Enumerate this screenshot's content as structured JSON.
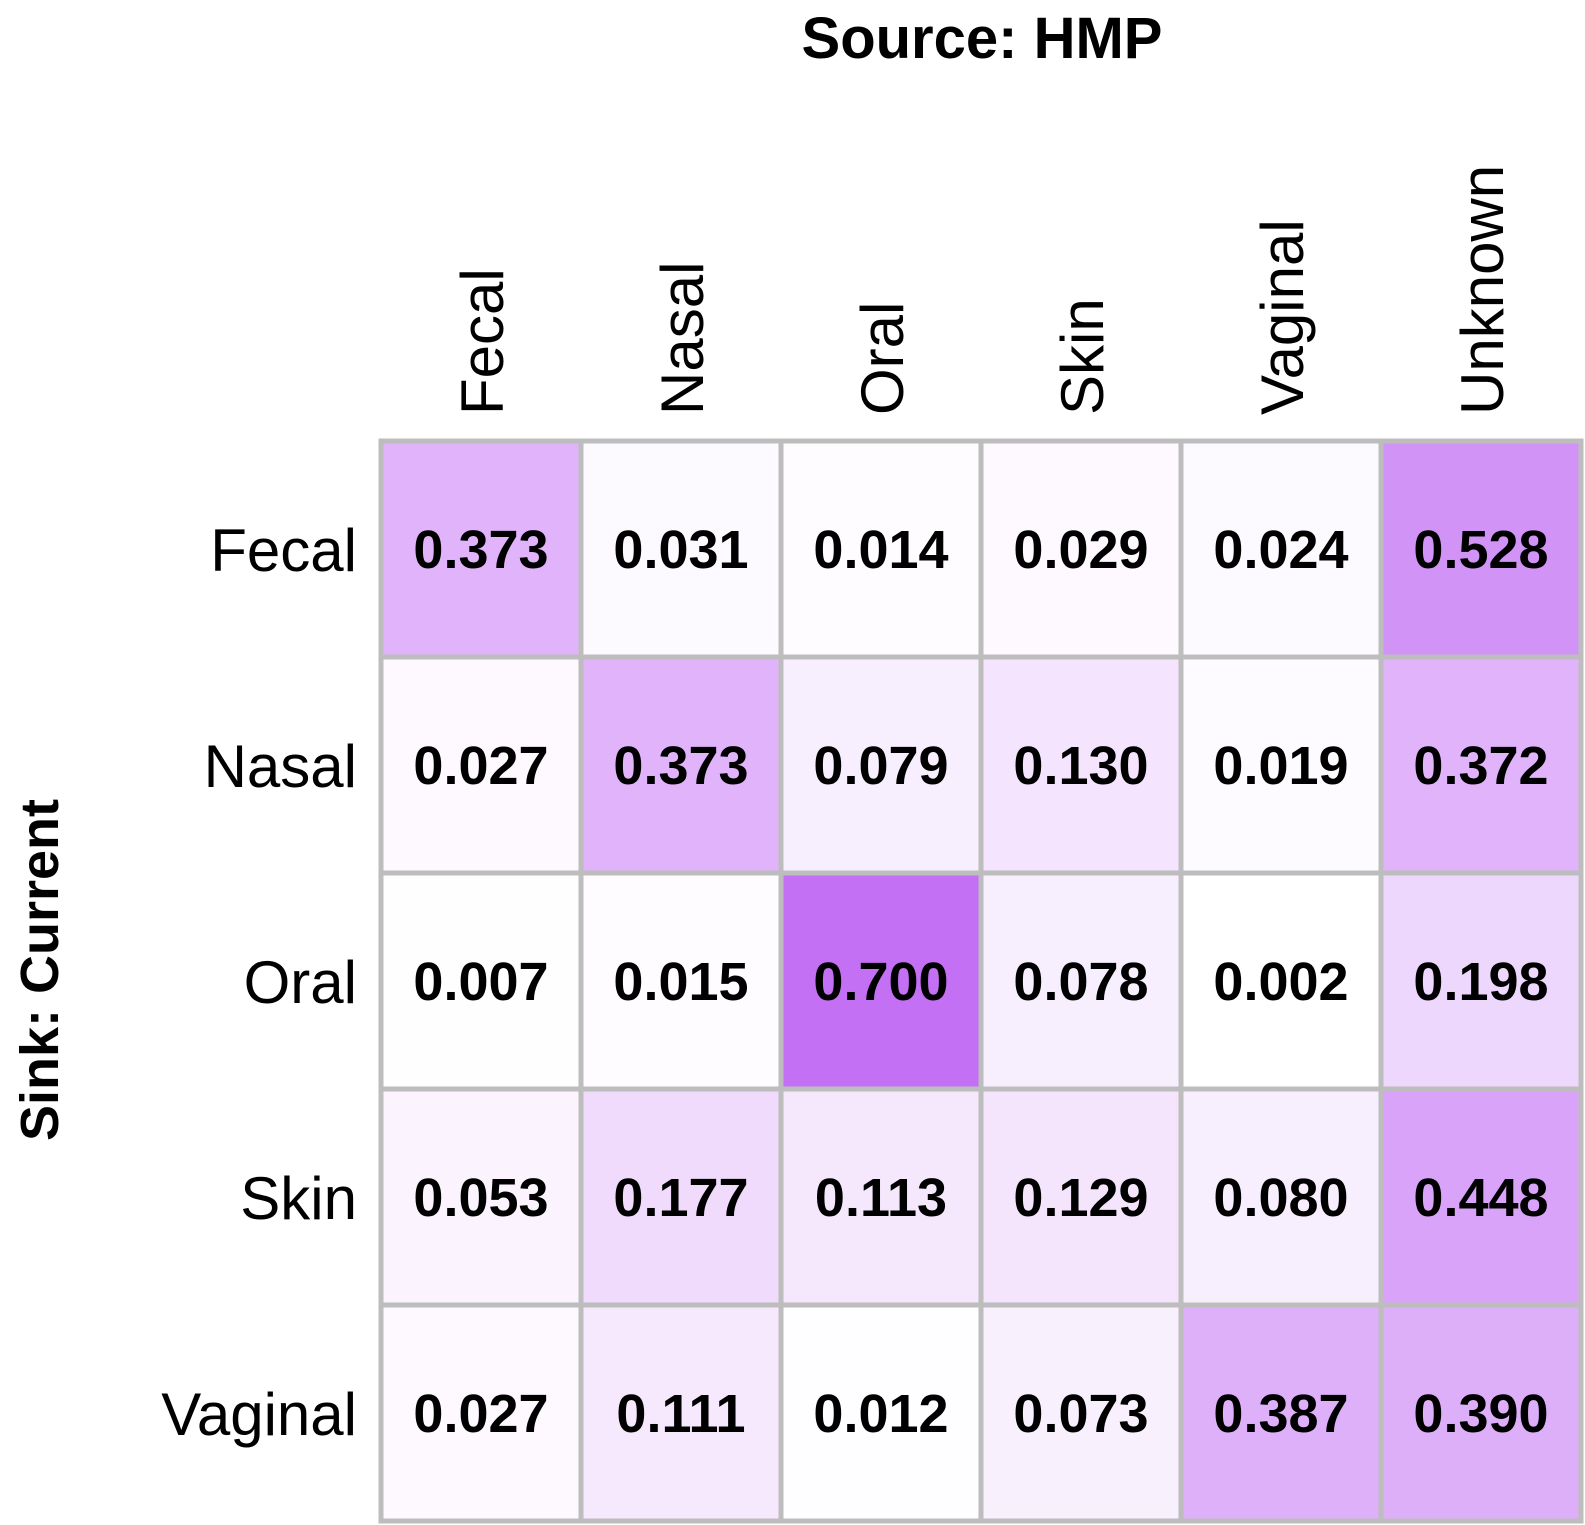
{
  "chart_data": {
    "type": "heatmap",
    "title": "Source: HMP",
    "ylabel": "Sink: Current",
    "xlabel": "",
    "x_categories": [
      "Fecal",
      "Nasal",
      "Oral",
      "Skin",
      "Vaginal",
      "Unknown"
    ],
    "y_categories": [
      "Fecal",
      "Nasal",
      "Oral",
      "Skin",
      "Vaginal"
    ],
    "values": [
      [
        0.373,
        0.031,
        0.014,
        0.029,
        0.024,
        0.528
      ],
      [
        0.027,
        0.373,
        0.079,
        0.13,
        0.019,
        0.372
      ],
      [
        0.007,
        0.015,
        0.7,
        0.078,
        0.002,
        0.198
      ],
      [
        0.053,
        0.177,
        0.113,
        0.129,
        0.08,
        0.448
      ],
      [
        0.027,
        0.111,
        0.012,
        0.073,
        0.387,
        0.39
      ]
    ],
    "value_labels": [
      [
        "0.373",
        "0.031",
        "0.014",
        "0.029",
        "0.024",
        "0.528"
      ],
      [
        "0.027",
        "0.373",
        "0.079",
        "0.130",
        "0.019",
        "0.372"
      ],
      [
        "0.007",
        "0.015",
        "0.700",
        "0.078",
        "0.002",
        "0.198"
      ],
      [
        "0.053",
        "0.177",
        "0.113",
        "0.129",
        "0.080",
        "0.448"
      ],
      [
        "0.027",
        "0.111",
        "0.012",
        "0.073",
        "0.387",
        "0.390"
      ]
    ],
    "color_min": "#ffffff",
    "color_max": "#c470f5",
    "value_range": [
      0,
      0.7
    ],
    "grid_color": "#bdbdbd",
    "legend": "none"
  }
}
